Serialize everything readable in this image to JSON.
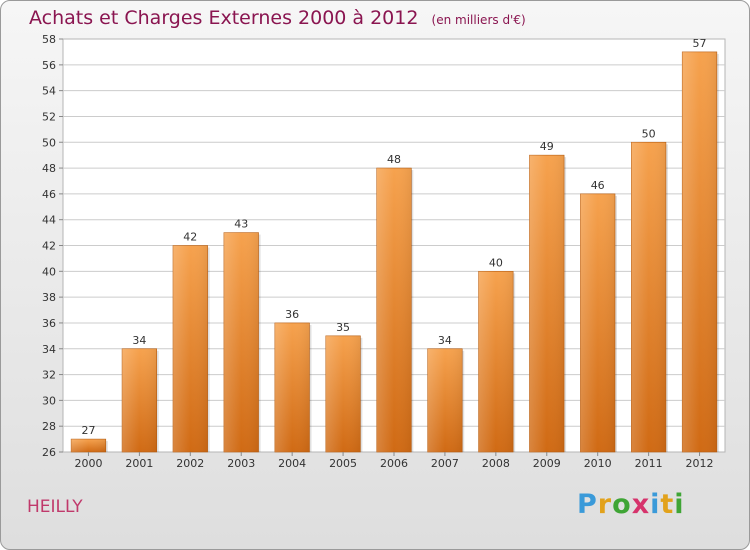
{
  "header": {
    "title": "Achats et Charges Externes 2000 à 2012",
    "unit": "(en milliers d'€)"
  },
  "commune": "HEILLY",
  "logo": {
    "text": "Proxiti",
    "letters": [
      "P",
      "r",
      "o",
      "x",
      "i",
      "t",
      "i"
    ],
    "colors": [
      "#3a9ad9",
      "#e2a21b",
      "#3fa535",
      "#d6336c",
      "#3a9ad9",
      "#e2a21b",
      "#3fa535"
    ]
  },
  "colors": {
    "title": "#8a1550",
    "bar_top": "#f6a24e",
    "bar_bottom": "#d06a14",
    "grid": "#cccccc"
  },
  "chart_data": {
    "type": "bar",
    "title": "Achats et Charges Externes 2000 à 2012",
    "subtitle": "(en milliers d'€)",
    "categories": [
      "2000",
      "2001",
      "2002",
      "2003",
      "2004",
      "2005",
      "2006",
      "2007",
      "2008",
      "2009",
      "2010",
      "2011",
      "2012"
    ],
    "values": [
      27,
      34,
      42,
      43,
      36,
      35,
      48,
      34,
      40,
      49,
      46,
      50,
      57
    ],
    "ylim": [
      26,
      58
    ],
    "yticks": [
      26,
      28,
      30,
      32,
      34,
      36,
      38,
      40,
      42,
      44,
      46,
      48,
      50,
      52,
      54,
      56,
      58
    ],
    "grid": true,
    "legend": "none"
  }
}
